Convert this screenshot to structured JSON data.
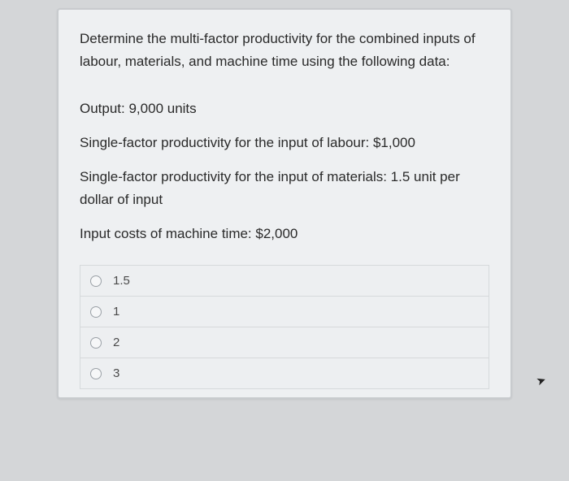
{
  "question": {
    "prompt": "Determine the multi-factor productivity for the combined inputs of labour, materials, and machine time using the following data:",
    "data_lines": [
      "Output: 9,000 units",
      "Single-factor productivity for the input of labour: $1,000",
      "Single-factor productivity for the input of materials: 1.5 unit per dollar of input",
      "Input costs of machine time: $2,000"
    ],
    "options": [
      {
        "label": "1.5"
      },
      {
        "label": "1"
      },
      {
        "label": "2"
      },
      {
        "label": "3"
      }
    ]
  },
  "style": {
    "card_bg": "#eef0f2",
    "page_bg": "#d4d6d8",
    "border_color": "#c8cbce",
    "option_border": "#d6d9db",
    "text_color": "#2a2a2a",
    "option_text_color": "#4a4a4a",
    "radio_border": "#9aa0a6",
    "font_size_body": 17,
    "font_size_option": 15
  }
}
